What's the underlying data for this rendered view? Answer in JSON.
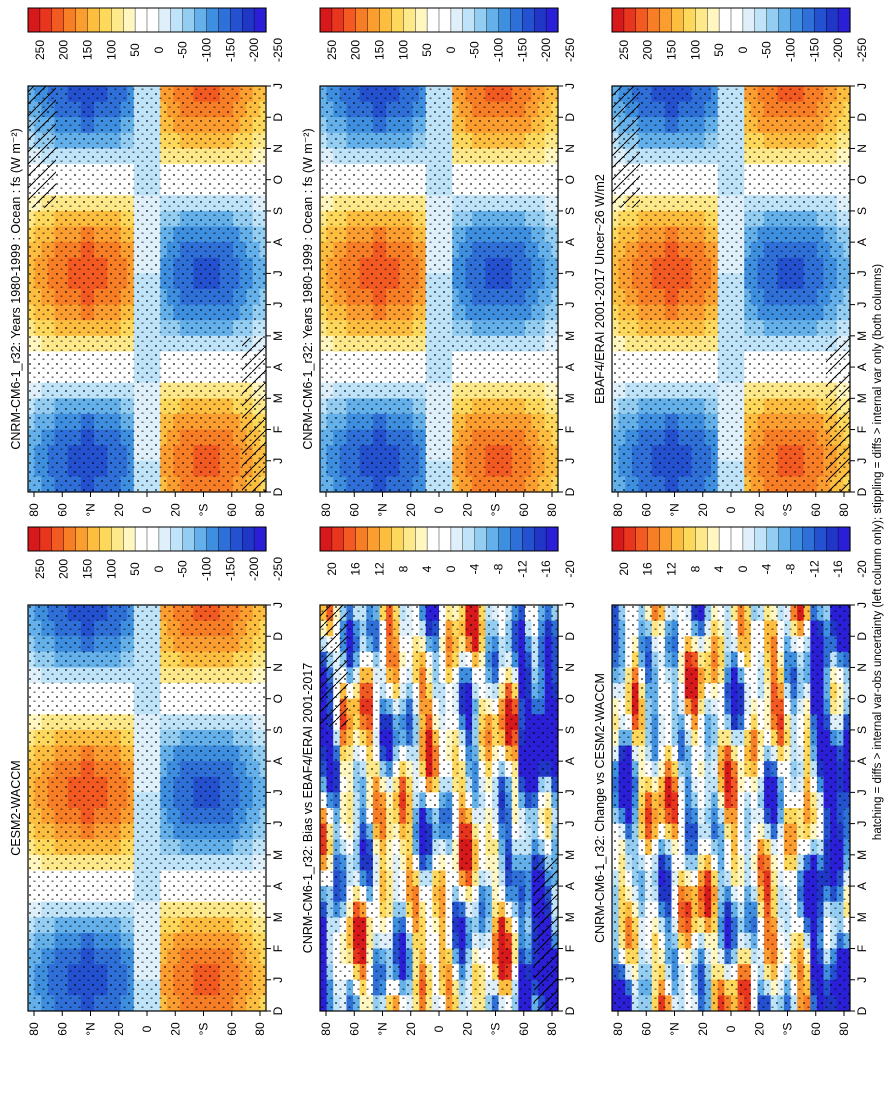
{
  "figure": {
    "footnote": "hatching = diffs > internal var-obs uncertainty (left column only); stippling = diffs > internal var only (both columns)"
  },
  "palettes": {
    "diverging": [
      "#d7191c",
      "#e8361e",
      "#f35a21",
      "#f87e26",
      "#fb9e2f",
      "#fdbd3f",
      "#fed85a",
      "#fee98a",
      "#fff6c0",
      "#ffffff",
      "#ffffff",
      "#dff0fb",
      "#bfe3f8",
      "#93cdf2",
      "#64b0ea",
      "#3f8fe0",
      "#2f6fd8",
      "#2451d0",
      "#2036c7",
      "#2a1fd6"
    ]
  },
  "month_ticks": [
    "D",
    "J",
    "F",
    "M",
    "A",
    "M",
    "J",
    "J",
    "A",
    "S",
    "O",
    "N",
    "D",
    "J"
  ],
  "lat_ticks": [
    "80",
    "60",
    "°N",
    "20",
    "0",
    "20",
    "°S",
    "60",
    "80"
  ],
  "chart_data": [
    {
      "type": "heatmap",
      "title": "CNRM-CM6-1_r32: Years 1980-1999 : Ocean : fs (W m⁻²)",
      "colorbar_ticks": [
        "250",
        "200",
        "150",
        "100",
        "50",
        "0",
        "-50",
        "-100",
        "-150",
        "-200",
        "-250"
      ],
      "range": [
        -275,
        275
      ],
      "hatching": true,
      "stippling": true,
      "feature": "climatology"
    },
    {
      "type": "heatmap",
      "title": "CNRM-CM6-1_r32: Years 1980-1999 : Ocean : fs (W m⁻²)",
      "colorbar_ticks": [
        "250",
        "200",
        "150",
        "100",
        "50",
        "0",
        "-50",
        "-100",
        "-150",
        "-200",
        "-250"
      ],
      "range": [
        -275,
        275
      ],
      "hatching": false,
      "stippling": true,
      "feature": "climatology"
    },
    {
      "type": "heatmap",
      "title": "EBAF4/ERAI 2001-2017 Uncer~26 W/m2",
      "colorbar_ticks": [
        "250",
        "200",
        "150",
        "100",
        "50",
        "0",
        "-50",
        "-100",
        "-150",
        "-200",
        "-250"
      ],
      "range": [
        -275,
        275
      ],
      "hatching": true,
      "stippling": true,
      "feature": "climatology"
    },
    {
      "type": "heatmap",
      "title": "CESM2-WACCM",
      "colorbar_ticks": [
        "250",
        "200",
        "150",
        "100",
        "50",
        "0",
        "-50",
        "-100",
        "-150",
        "-200",
        "-250"
      ],
      "range": [
        -275,
        275
      ],
      "hatching": false,
      "stippling": true,
      "feature": "climatology"
    },
    {
      "type": "heatmap",
      "title": "CNRM-CM6-1_r32: Bias vs EBAF4/ERAI 2001-2017",
      "colorbar_ticks": [
        "20",
        "16",
        "12",
        "8",
        "4",
        "0",
        "-4",
        "-8",
        "-12",
        "-16",
        "-20"
      ],
      "range": [
        -22,
        22
      ],
      "hatching": true,
      "stippling": true,
      "feature": "difference"
    },
    {
      "type": "heatmap",
      "title": "CNRM-CM6-1_r32: Change vs CESM2-WACCM",
      "colorbar_ticks": [
        "20",
        "16",
        "12",
        "8",
        "4",
        "0",
        "-4",
        "-8",
        "-12",
        "-16",
        "-20"
      ],
      "range": [
        -22,
        22
      ],
      "hatching": false,
      "stippling": true,
      "feature": "difference"
    }
  ]
}
